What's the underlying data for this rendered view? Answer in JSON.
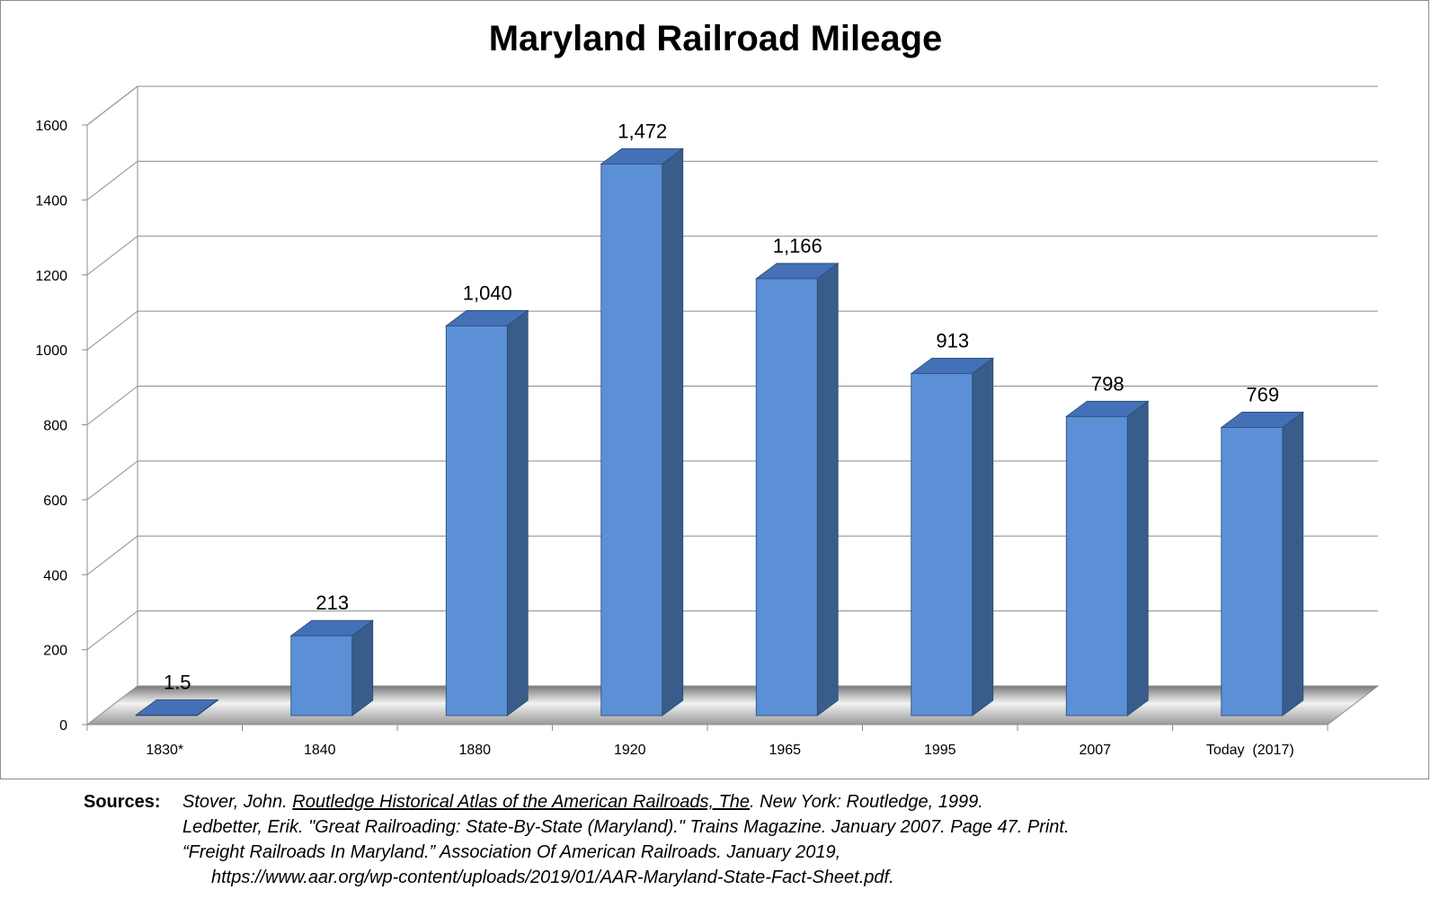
{
  "chart_data": {
    "type": "bar",
    "title": "Maryland Railroad Mileage",
    "categories": [
      "1830*",
      "1840",
      "1880",
      "1920",
      "1965",
      "1995",
      "2007",
      "Today  (2017)"
    ],
    "values": [
      1.5,
      213,
      1040,
      1472,
      1166,
      913,
      798,
      769
    ],
    "data_labels": [
      "1.5",
      "213",
      "1,040",
      "1,472",
      "1,166",
      "913",
      "798",
      "769"
    ],
    "yticks": [
      "0",
      "200",
      "400",
      "600",
      "800",
      "1000",
      "1200",
      "1400",
      "1600"
    ],
    "ylim": [
      0,
      1600
    ],
    "grid": true,
    "legend": "none",
    "style": "3d-column",
    "colors": {
      "bar_front": "#5B8FD6",
      "bar_top": "#4470B8",
      "bar_side": "#385D8A",
      "grid": "#8c8c8c"
    }
  },
  "sources": {
    "label": "Sources:",
    "line1_pre": "Stover, John. ",
    "line1_title": "Routledge Historical Atlas of the American Railroads, The",
    "line1_post": ". New York: Routledge, 1999.",
    "line2": "Ledbetter, Erik. \"Great Railroading: State-By-State (Maryland).\" Trains Magazine. January 2007. Page 47. Print.",
    "line3": "“Freight Railroads In Maryland.” Association Of American Railroads. January 2019,",
    "line4": "https://www.aar.org/wp-content/uploads/2019/01/AAR-Maryland-State-Fact-Sheet.pdf."
  }
}
